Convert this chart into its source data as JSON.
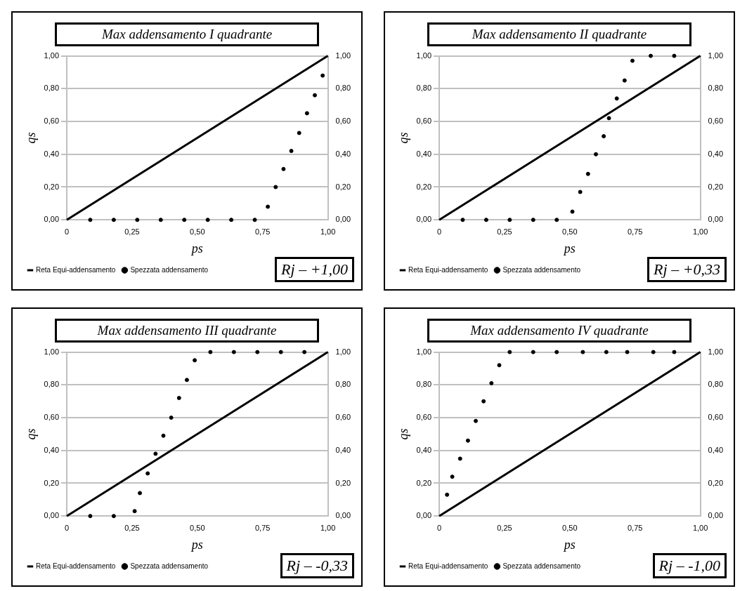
{
  "chart_data": [
    {
      "type": "line",
      "title": "Max addensamento I quadrante",
      "xlabel": "ps",
      "ylabel": "qs",
      "annotations": [
        "Rj – +1,00"
      ],
      "legend": "bottom left",
      "grid": "y",
      "xlim": [
        0,
        1
      ],
      "ylim": [
        0,
        1
      ],
      "y2lim": [
        0,
        1
      ],
      "xticks": [
        {
          "value": 0,
          "label": "0"
        },
        {
          "value": 0.25,
          "label": "0,25"
        },
        {
          "value": 0.5,
          "label": "0,50"
        },
        {
          "value": 0.75,
          "label": "0,75"
        },
        {
          "value": 1,
          "label": "1,00"
        }
      ],
      "yticks": [
        {
          "value": 0,
          "label": "0,00"
        },
        {
          "value": 0.2,
          "label": "0,20"
        },
        {
          "value": 0.4,
          "label": "0,40"
        },
        {
          "value": 0.6,
          "label": "0,60"
        },
        {
          "value": 0.8,
          "label": "0,80"
        },
        {
          "value": 1,
          "label": "1,00"
        }
      ],
      "y2ticks": [
        {
          "value": 0,
          "label": "0,00"
        },
        {
          "value": 0.2,
          "label": "0,20"
        },
        {
          "value": 0.4,
          "label": "0,40"
        },
        {
          "value": 0.6,
          "label": "0,60"
        },
        {
          "value": 0.8,
          "label": "0,80"
        },
        {
          "value": 1,
          "label": "1,00"
        }
      ],
      "series": [
        {
          "name": "Reta Equi-addensamento",
          "type": "line",
          "color": "#000000",
          "line_style": "solid",
          "x": [
            0,
            1
          ],
          "values": [
            0,
            1
          ]
        },
        {
          "name": "Spezzata addensamento",
          "type": "scatter",
          "marker": "circle",
          "color": "#000000",
          "x": [
            0.09,
            0.18,
            0.27,
            0.36,
            0.45,
            0.54,
            0.63,
            0.72,
            0.77,
            0.8,
            0.83,
            0.86,
            0.89,
            0.92,
            0.95,
            0.98
          ],
          "values": [
            0,
            0,
            0,
            0,
            0,
            0,
            0,
            0,
            0.08,
            0.2,
            0.31,
            0.42,
            0.53,
            0.65,
            0.76,
            0.88
          ]
        }
      ]
    },
    {
      "type": "line",
      "title": "Max addensamento II quadrante",
      "xlabel": "ps",
      "ylabel": "qs",
      "annotations": [
        "Rj – +0,33"
      ],
      "legend": "bottom left",
      "grid": "y",
      "xlim": [
        0,
        1
      ],
      "ylim": [
        0,
        1
      ],
      "y2lim": [
        0,
        1
      ],
      "xticks": [
        {
          "value": 0,
          "label": "0"
        },
        {
          "value": 0.25,
          "label": "0,25"
        },
        {
          "value": 0.5,
          "label": "0,50"
        },
        {
          "value": 0.75,
          "label": "0,75"
        },
        {
          "value": 1,
          "label": "1,00"
        }
      ],
      "yticks": [
        {
          "value": 0,
          "label": "0,00"
        },
        {
          "value": 0.2,
          "label": "0,20"
        },
        {
          "value": 0.4,
          "label": "0,40"
        },
        {
          "value": 0.6,
          "label": "0,60"
        },
        {
          "value": 0.8,
          "label": "0,80"
        },
        {
          "value": 1,
          "label": "1,00"
        }
      ],
      "y2ticks": [
        {
          "value": 0,
          "label": "0,00"
        },
        {
          "value": 0.2,
          "label": "0,20"
        },
        {
          "value": 0.4,
          "label": "0,40"
        },
        {
          "value": 0.6,
          "label": "0,60"
        },
        {
          "value": 0.8,
          "label": "0,80"
        },
        {
          "value": 1,
          "label": "1,00"
        }
      ],
      "series": [
        {
          "name": "Reta Equi-addensamento",
          "type": "line",
          "color": "#000000",
          "line_style": "solid",
          "x": [
            0,
            1
          ],
          "values": [
            0,
            1
          ]
        },
        {
          "name": "Spezzata addensamento",
          "type": "scatter",
          "marker": "circle",
          "color": "#000000",
          "x": [
            0.09,
            0.18,
            0.27,
            0.36,
            0.45,
            0.51,
            0.54,
            0.57,
            0.6,
            0.63,
            0.65,
            0.68,
            0.71,
            0.74,
            0.81,
            0.9
          ],
          "values": [
            0,
            0,
            0,
            0,
            0,
            0.05,
            0.17,
            0.28,
            0.4,
            0.51,
            0.62,
            0.74,
            0.85,
            0.97,
            1,
            1
          ]
        }
      ]
    },
    {
      "type": "line",
      "title": "Max addensamento III quadrante",
      "xlabel": "ps",
      "ylabel": "qs",
      "annotations": [
        "Rj – -0,33"
      ],
      "legend": "bottom left",
      "grid": "y",
      "xlim": [
        0,
        1
      ],
      "ylim": [
        0,
        1
      ],
      "y2lim": [
        0,
        1
      ],
      "xticks": [
        {
          "value": 0,
          "label": "0"
        },
        {
          "value": 0.25,
          "label": "0,25"
        },
        {
          "value": 0.5,
          "label": "0,50"
        },
        {
          "value": 0.75,
          "label": "0,75"
        },
        {
          "value": 1,
          "label": "1,00"
        }
      ],
      "yticks": [
        {
          "value": 0,
          "label": "0,00"
        },
        {
          "value": 0.2,
          "label": "0,20"
        },
        {
          "value": 0.4,
          "label": "0,40"
        },
        {
          "value": 0.6,
          "label": "0,60"
        },
        {
          "value": 0.8,
          "label": "0,80"
        },
        {
          "value": 1,
          "label": "1,00"
        }
      ],
      "y2ticks": [
        {
          "value": 0,
          "label": "0,00"
        },
        {
          "value": 0.2,
          "label": "0,20"
        },
        {
          "value": 0.4,
          "label": "0,40"
        },
        {
          "value": 0.6,
          "label": "0,60"
        },
        {
          "value": 0.8,
          "label": "0,80"
        },
        {
          "value": 1,
          "label": "1,00"
        }
      ],
      "series": [
        {
          "name": "Reta Equi-addensamento",
          "type": "line",
          "color": "#000000",
          "line_style": "solid",
          "x": [
            0,
            1
          ],
          "values": [
            0,
            1
          ]
        },
        {
          "name": "Spezzata addensamento",
          "type": "scatter",
          "marker": "circle",
          "color": "#000000",
          "x": [
            0.09,
            0.18,
            0.26,
            0.28,
            0.31,
            0.34,
            0.37,
            0.4,
            0.43,
            0.46,
            0.49,
            0.55,
            0.64,
            0.73,
            0.82,
            0.91
          ],
          "values": [
            0,
            0,
            0.03,
            0.14,
            0.26,
            0.38,
            0.49,
            0.6,
            0.72,
            0.83,
            0.95,
            1,
            1,
            1,
            1,
            1
          ]
        }
      ]
    },
    {
      "type": "line",
      "title": "Max addensamento IV quadrante",
      "xlabel": "ps",
      "ylabel": "qs",
      "annotations": [
        "Rj – -1,00"
      ],
      "legend": "bottom left",
      "grid": "y",
      "xlim": [
        0,
        1
      ],
      "ylim": [
        0,
        1
      ],
      "y2lim": [
        0,
        1
      ],
      "xticks": [
        {
          "value": 0,
          "label": "0"
        },
        {
          "value": 0.25,
          "label": "0,25"
        },
        {
          "value": 0.5,
          "label": "0,50"
        },
        {
          "value": 0.75,
          "label": "0,75"
        },
        {
          "value": 1,
          "label": "1,00"
        }
      ],
      "yticks": [
        {
          "value": 0,
          "label": "0,00"
        },
        {
          "value": 0.2,
          "label": "0,20"
        },
        {
          "value": 0.4,
          "label": "0,40"
        },
        {
          "value": 0.6,
          "label": "0,60"
        },
        {
          "value": 0.8,
          "label": "0,80"
        },
        {
          "value": 1,
          "label": "1,00"
        }
      ],
      "y2ticks": [
        {
          "value": 0,
          "label": "0,00"
        },
        {
          "value": 0.2,
          "label": "0,20"
        },
        {
          "value": 0.4,
          "label": "0,40"
        },
        {
          "value": 0.6,
          "label": "0,60"
        },
        {
          "value": 0.8,
          "label": "0,80"
        },
        {
          "value": 1,
          "label": "1,00"
        }
      ],
      "series": [
        {
          "name": "Reta Equi-addensamento",
          "type": "line",
          "color": "#000000",
          "line_style": "solid",
          "x": [
            0,
            1
          ],
          "values": [
            0,
            1
          ]
        },
        {
          "name": "Spezzata addensamento",
          "type": "scatter",
          "marker": "circle",
          "color": "#000000",
          "x": [
            0.03,
            0.05,
            0.08,
            0.11,
            0.14,
            0.17,
            0.2,
            0.23,
            0.27,
            0.36,
            0.45,
            0.55,
            0.64,
            0.72,
            0.82,
            0.9
          ],
          "values": [
            0.13,
            0.24,
            0.35,
            0.46,
            0.58,
            0.7,
            0.81,
            0.92,
            1,
            1,
            1,
            1,
            1,
            1,
            1,
            1
          ]
        }
      ]
    }
  ]
}
